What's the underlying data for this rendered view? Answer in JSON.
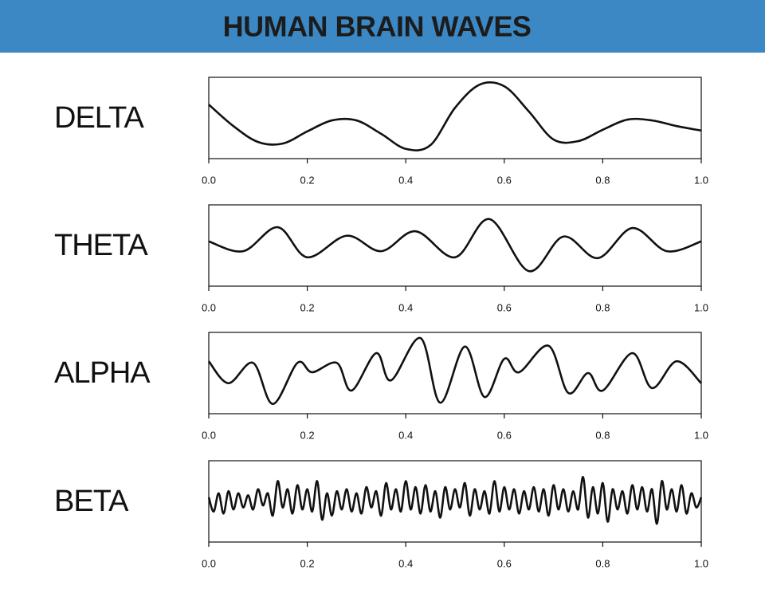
{
  "header": {
    "title": "HUMAN BRAIN WAVES"
  },
  "chart_data": [
    {
      "type": "line",
      "title": "DELTA",
      "color": "#111111",
      "xlim": [
        0,
        1
      ],
      "ylim": [
        -1,
        1
      ],
      "xticks": [
        {
          "value": 0,
          "label": "0.0"
        },
        0.2,
        0.4,
        0.6,
        0.8,
        {
          "value": 1,
          "label": "1.0"
        }
      ],
      "x": [
        0,
        0.05,
        0.1,
        0.15,
        0.2,
        0.25,
        0.3,
        0.35,
        0.4,
        0.45,
        0.5,
        0.55,
        0.6,
        0.65,
        0.7,
        0.75,
        0.8,
        0.85,
        0.9,
        0.95,
        1
      ],
      "values": [
        0.33,
        -0.2,
        -0.59,
        -0.63,
        -0.33,
        -0.06,
        -0.06,
        -0.39,
        -0.76,
        -0.67,
        0.25,
        0.82,
        0.78,
        0.16,
        -0.53,
        -0.57,
        -0.29,
        -0.04,
        -0.06,
        -0.2,
        -0.31
      ]
    },
    {
      "type": "line",
      "title": "THETA",
      "color": "#111111",
      "xlim": [
        0,
        1
      ],
      "ylim": [
        -1,
        1
      ],
      "xticks": [
        {
          "value": 0,
          "label": "0.0"
        },
        0.2,
        0.4,
        0.6,
        0.8,
        {
          "value": 1,
          "label": "1.0"
        }
      ],
      "x": [
        0,
        0.07,
        0.14,
        0.2,
        0.28,
        0.35,
        0.42,
        0.5,
        0.57,
        0.65,
        0.72,
        0.79,
        0.86,
        0.93,
        1
      ],
      "values": [
        0.1,
        -0.14,
        0.45,
        -0.29,
        0.24,
        -0.14,
        0.35,
        -0.29,
        0.65,
        -0.63,
        0.22,
        -0.31,
        0.43,
        -0.14,
        0.1
      ]
    },
    {
      "type": "line",
      "title": "ALPHA",
      "color": "#111111",
      "xlim": [
        0,
        1
      ],
      "ylim": [
        -1,
        1
      ],
      "xticks": [
        {
          "value": 0,
          "label": "0.0"
        },
        0.2,
        0.4,
        0.6,
        0.8,
        {
          "value": 1,
          "label": "1.0"
        }
      ],
      "x": [
        0,
        0.04,
        0.09,
        0.13,
        0.18,
        0.21,
        0.26,
        0.29,
        0.34,
        0.37,
        0.43,
        0.47,
        0.52,
        0.56,
        0.6,
        0.63,
        0.69,
        0.73,
        0.77,
        0.8,
        0.86,
        0.9,
        0.95,
        1
      ],
      "values": [
        0.29,
        -0.25,
        0.25,
        -0.76,
        0.25,
        0.02,
        0.25,
        -0.43,
        0.49,
        -0.18,
        0.86,
        -0.73,
        0.65,
        -0.59,
        0.35,
        0.02,
        0.67,
        -0.49,
        0,
        -0.43,
        0.49,
        -0.37,
        0.29,
        -0.25
      ]
    },
    {
      "type": "line",
      "title": "BETA",
      "color": "#111111",
      "xlim": [
        0,
        1
      ],
      "ylim": [
        -1,
        1
      ],
      "xticks": [
        {
          "value": 0,
          "label": "0.0"
        },
        0.2,
        0.4,
        0.6,
        0.8,
        {
          "value": 1,
          "label": "1.0"
        }
      ],
      "x": [
        0,
        0.01,
        0.02,
        0.03,
        0.04,
        0.05,
        0.06,
        0.07,
        0.08,
        0.09,
        0.1,
        0.11,
        0.12,
        0.13,
        0.14,
        0.15,
        0.16,
        0.17,
        0.18,
        0.19,
        0.2,
        0.21,
        0.22,
        0.23,
        0.24,
        0.25,
        0.26,
        0.27,
        0.28,
        0.29,
        0.3,
        0.31,
        0.32,
        0.33,
        0.34,
        0.35,
        0.36,
        0.37,
        0.38,
        0.39,
        0.4,
        0.41,
        0.42,
        0.43,
        0.44,
        0.45,
        0.46,
        0.47,
        0.48,
        0.49,
        0.5,
        0.51,
        0.52,
        0.53,
        0.54,
        0.55,
        0.56,
        0.57,
        0.58,
        0.59,
        0.6,
        0.61,
        0.62,
        0.63,
        0.64,
        0.65,
        0.66,
        0.67,
        0.68,
        0.69,
        0.7,
        0.71,
        0.72,
        0.73,
        0.74,
        0.75,
        0.76,
        0.77,
        0.78,
        0.79,
        0.8,
        0.81,
        0.82,
        0.83,
        0.84,
        0.85,
        0.86,
        0.87,
        0.88,
        0.89,
        0.9,
        0.91,
        0.92,
        0.93,
        0.94,
        0.95,
        0.96,
        0.97,
        0.98,
        0.99,
        1
      ],
      "values": [
        0.1,
        -0.25,
        0.2,
        -0.3,
        0.25,
        -0.2,
        0.2,
        -0.15,
        0.15,
        -0.2,
        0.3,
        -0.1,
        0.2,
        -0.35,
        0.5,
        -0.15,
        0.3,
        -0.3,
        0.4,
        -0.2,
        0.3,
        -0.25,
        0.5,
        -0.45,
        0.2,
        -0.35,
        0.25,
        -0.2,
        0.3,
        -0.25,
        0.2,
        -0.3,
        0.35,
        -0.15,
        0.25,
        -0.35,
        0.45,
        -0.2,
        0.3,
        -0.25,
        0.5,
        -0.2,
        0.35,
        -0.3,
        0.4,
        -0.25,
        0.25,
        -0.4,
        0.35,
        -0.2,
        0.3,
        -0.15,
        0.45,
        -0.35,
        0.3,
        -0.2,
        0.25,
        -0.3,
        0.5,
        -0.25,
        0.35,
        -0.2,
        0.3,
        -0.3,
        0.25,
        -0.2,
        0.35,
        -0.25,
        0.3,
        -0.35,
        0.4,
        -0.2,
        0.3,
        -0.25,
        0.25,
        -0.2,
        0.6,
        -0.4,
        0.35,
        -0.3,
        0.45,
        -0.5,
        0.3,
        -0.2,
        0.25,
        -0.3,
        0.4,
        -0.2,
        0.35,
        -0.25,
        0.3,
        -0.55,
        0.5,
        -0.2,
        0.3,
        -0.25,
        0.4,
        -0.3,
        0.2,
        -0.15,
        0.1
      ]
    }
  ]
}
